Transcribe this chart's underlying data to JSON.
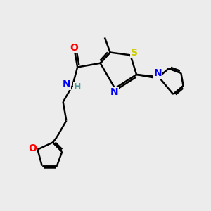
{
  "bg_color": "#ececec",
  "bond_color": "#000000",
  "S_color": "#cccc00",
  "N_color": "#0000ff",
  "O_color": "#ff0000",
  "H_color": "#4a9a9a",
  "line_width": 1.8,
  "figsize": [
    3.0,
    3.0
  ],
  "dpi": 100,
  "xlim": [
    0,
    10
  ],
  "ylim": [
    0,
    10
  ]
}
